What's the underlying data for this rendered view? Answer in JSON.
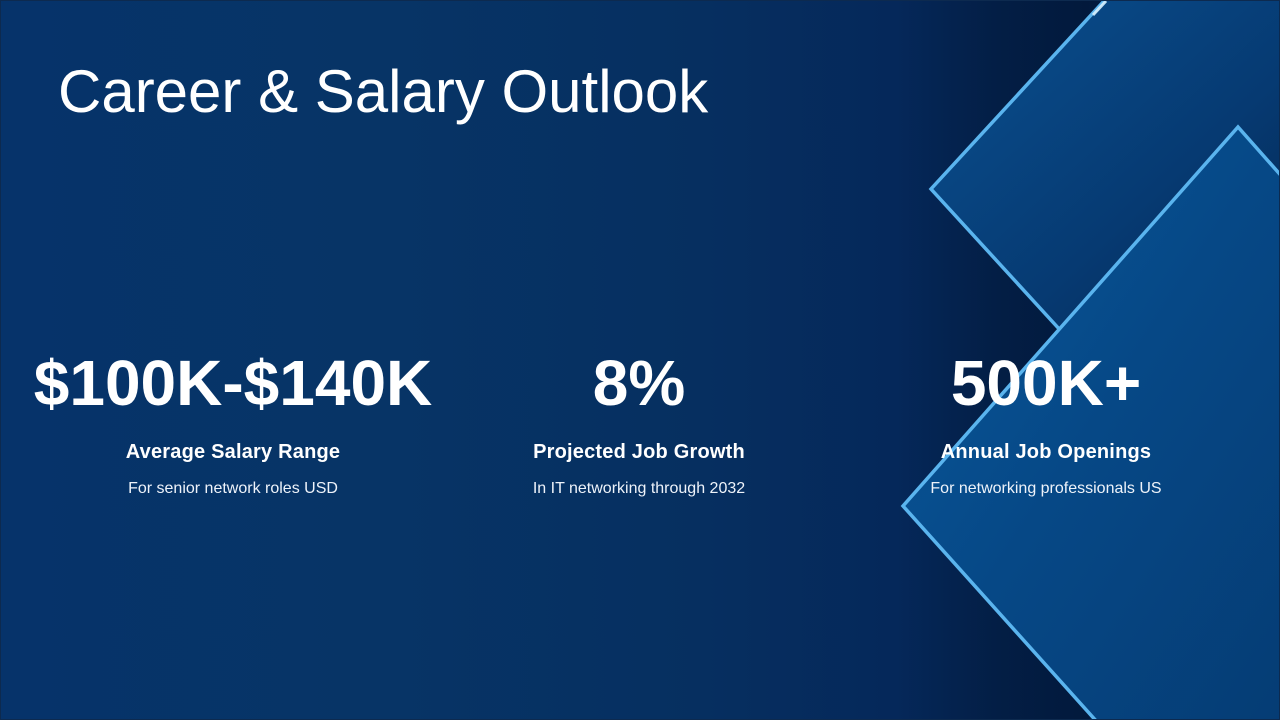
{
  "slide": {
    "title": "Career & Salary Outlook",
    "stats": [
      {
        "value": "$100K-$140K",
        "label": "Average Salary Range",
        "description": "For senior network roles USD"
      },
      {
        "value": "8%",
        "label": "Projected Job Growth",
        "description": "In IT networking through 2032"
      },
      {
        "value": "500K+",
        "label": "Annual Job Openings",
        "description": "For networking professionals US"
      }
    ]
  },
  "colors": {
    "background": "#06336a",
    "background_dark": "#02193c",
    "accent_line": "#5ab4ee",
    "text": "#ffffff"
  }
}
